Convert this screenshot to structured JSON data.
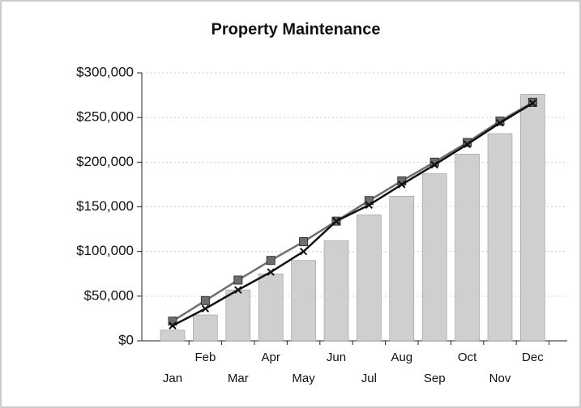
{
  "chart_data": {
    "type": "bar-line",
    "title": "Property Maintenance",
    "categories": [
      "Jan",
      "Feb",
      "Mar",
      "Apr",
      "May",
      "Jun",
      "Jul",
      "Aug",
      "Sep",
      "Oct",
      "Nov",
      "Dec"
    ],
    "series": [
      {
        "type": "bar",
        "color": "#cfcfcf",
        "values": [
          12000,
          29000,
          57000,
          75000,
          90000,
          112000,
          141000,
          162000,
          187000,
          209000,
          232000,
          276000
        ]
      },
      {
        "type": "line",
        "marker": "square",
        "color": "#6e6e6e",
        "values": [
          22000,
          45000,
          68000,
          90000,
          111000,
          134000,
          157000,
          179000,
          200000,
          222000,
          246000,
          267000
        ]
      },
      {
        "type": "line",
        "marker": "x",
        "color": "#111111",
        "values": [
          17000,
          36000,
          57000,
          77000,
          100000,
          134000,
          152000,
          175000,
          197000,
          220000,
          244000,
          266000
        ]
      }
    ],
    "ylim": [
      0,
      300000
    ],
    "yticks": [
      {
        "value": 0,
        "label": "$0"
      },
      {
        "value": 50000,
        "label": "$50,000"
      },
      {
        "value": 100000,
        "label": "$100,000"
      },
      {
        "value": 150000,
        "label": "$150,000"
      },
      {
        "value": 200000,
        "label": "$200,000"
      },
      {
        "value": 250000,
        "label": "$250,000"
      },
      {
        "value": 300000,
        "label": "$300,000"
      }
    ],
    "grid": true
  }
}
